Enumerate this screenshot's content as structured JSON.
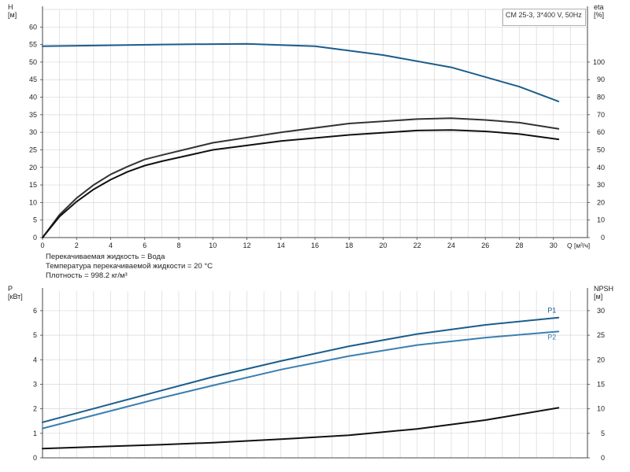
{
  "legend_box": "CM 25-3, 3*400 V, 50Hz",
  "info_lines": [
    "Перекачиваемая жидкость = Вода",
    "Температура перекачиваемой жидкости = 20 °C",
    "Плотность = 998.2 кг/м³"
  ],
  "chart_data": [
    {
      "type": "line",
      "x_label": "Q [м³/ч]",
      "y_left_label": [
        "H",
        "[м]"
      ],
      "y_right_label": [
        "eta",
        "[%]"
      ],
      "xlim": [
        0,
        32
      ],
      "x_ticks": [
        0,
        2,
        4,
        6,
        8,
        10,
        12,
        14,
        16,
        18,
        20,
        22,
        24,
        26,
        28,
        30
      ],
      "ylim_left": [
        0,
        65
      ],
      "y_left_ticks": [
        0,
        5,
        10,
        15,
        20,
        25,
        30,
        35,
        40,
        45,
        50,
        55,
        60
      ],
      "ylim_right": [
        0,
        130
      ],
      "y_right_ticks": [
        0,
        10,
        20,
        30,
        40,
        50,
        60,
        70,
        80,
        90,
        100
      ],
      "grid": true,
      "series": [
        {
          "axis": "left",
          "color": "#1b5d8c",
          "x": [
            0,
            7,
            12,
            16,
            20,
            24,
            28,
            30.3
          ],
          "y": [
            54.5,
            55,
            55.2,
            54.5,
            52,
            48.5,
            43,
            38.8
          ]
        },
        {
          "axis": "right",
          "color": "#333333",
          "x": [
            0,
            1,
            2,
            3,
            4,
            5,
            6,
            7,
            10,
            14,
            18,
            22,
            24,
            26,
            28,
            30.3
          ],
          "y": [
            0,
            13,
            22.5,
            30,
            36,
            40.5,
            44.5,
            47,
            54,
            60,
            65,
            67.5,
            68,
            67,
            65.5,
            62
          ]
        },
        {
          "axis": "right",
          "color": "#111111",
          "x": [
            0,
            1,
            2,
            3,
            4,
            5,
            6,
            7,
            10,
            14,
            18,
            22,
            24,
            26,
            28,
            30.3
          ],
          "y": [
            0,
            12,
            20.5,
            27.5,
            33,
            37.5,
            41,
            43.5,
            50,
            55,
            58.5,
            61,
            61.3,
            60.5,
            59,
            56
          ]
        }
      ]
    },
    {
      "type": "line",
      "y_left_label": [
        "P",
        "[кВт]"
      ],
      "y_right_label": [
        "NPSH",
        "[м]"
      ],
      "xlim": [
        0,
        32
      ],
      "ylim_left": [
        0,
        6.8
      ],
      "y_left_ticks": [
        0,
        1,
        2,
        3,
        4,
        5,
        6
      ],
      "ylim_right": [
        0,
        34
      ],
      "y_right_ticks": [
        0,
        5,
        10,
        15,
        20,
        25,
        30
      ],
      "grid": true,
      "series": [
        {
          "name": "P1",
          "axis": "left",
          "color": "#1b5d8c",
          "x": [
            0,
            7,
            10,
            14,
            18,
            22,
            26,
            30.3
          ],
          "y": [
            1.45,
            2.75,
            3.3,
            3.95,
            4.55,
            5.05,
            5.42,
            5.72
          ]
        },
        {
          "name": "P2",
          "axis": "left",
          "color": "#3a7fb0",
          "x": [
            0,
            7,
            10,
            14,
            18,
            22,
            26,
            30.3
          ],
          "y": [
            1.2,
            2.45,
            2.95,
            3.6,
            4.15,
            4.6,
            4.9,
            5.15
          ]
        },
        {
          "axis": "right",
          "color": "#111111",
          "x": [
            0,
            7,
            10,
            14,
            18,
            22,
            26,
            30.3
          ],
          "y": [
            1.9,
            2.7,
            3.1,
            3.8,
            4.6,
            5.9,
            7.7,
            10.2
          ]
        }
      ]
    }
  ]
}
